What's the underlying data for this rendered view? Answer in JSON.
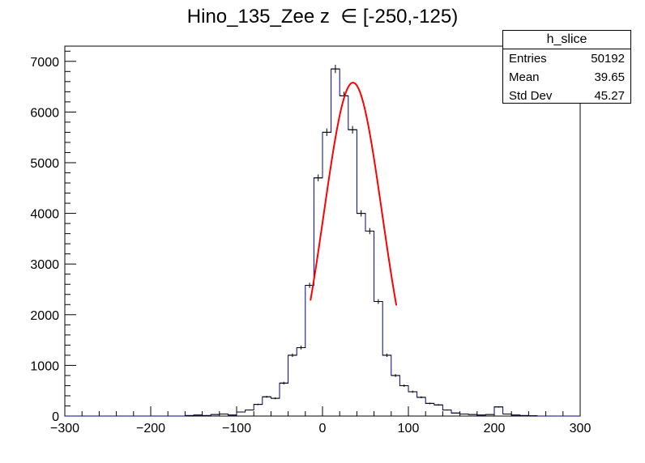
{
  "title": "Hino_135_Zee z  ∈ [-250,-125)",
  "stats": {
    "name": "h_slice",
    "rows": [
      {
        "label": "Entries",
        "value": "50192"
      },
      {
        "label": "Mean",
        "value": "39.65"
      },
      {
        "label": "Std Dev",
        "value": "45.27"
      }
    ]
  },
  "colors": {
    "histogram": "#00008b",
    "fit": "#ff0000",
    "axes": "#000000"
  },
  "chart_data": {
    "type": "bar",
    "title": "Hino_135_Zee z  ∈ [-250,-125)",
    "xlabel": "",
    "ylabel": "",
    "xlim": [
      -300,
      300
    ],
    "ylim": [
      0,
      7300
    ],
    "bin_width": 10,
    "x_ticks": [
      -300,
      -200,
      -100,
      0,
      100,
      200,
      300
    ],
    "y_ticks": [
      0,
      1000,
      2000,
      3000,
      4000,
      5000,
      6000,
      7000
    ],
    "bins_low_edge": [
      -300,
      -290,
      -280,
      -270,
      -260,
      -250,
      -240,
      -230,
      -220,
      -210,
      -200,
      -190,
      -180,
      -170,
      -160,
      -150,
      -140,
      -130,
      -120,
      -110,
      -100,
      -90,
      -80,
      -70,
      -60,
      -50,
      -40,
      -30,
      -20,
      -10,
      0,
      10,
      20,
      30,
      40,
      50,
      60,
      70,
      80,
      90,
      100,
      110,
      120,
      130,
      140,
      150,
      160,
      170,
      180,
      190,
      200,
      210,
      220,
      230,
      240,
      250,
      260,
      270,
      280,
      290
    ],
    "counts": [
      0,
      0,
      0,
      0,
      0,
      0,
      0,
      0,
      0,
      0,
      0,
      0,
      0,
      0,
      10,
      20,
      10,
      30,
      40,
      20,
      80,
      120,
      230,
      380,
      350,
      650,
      1200,
      1350,
      2580,
      4700,
      5600,
      6850,
      6320,
      5650,
      4000,
      3650,
      2260,
      1200,
      800,
      600,
      480,
      370,
      250,
      220,
      120,
      60,
      40,
      30,
      20,
      30,
      180,
      40,
      20,
      10,
      5,
      0,
      0,
      0,
      0,
      0
    ],
    "fit": {
      "type": "gaussian",
      "range": [
        -14,
        86
      ],
      "constant": 6580,
      "mean": 35.5,
      "sigma": 34
    }
  }
}
